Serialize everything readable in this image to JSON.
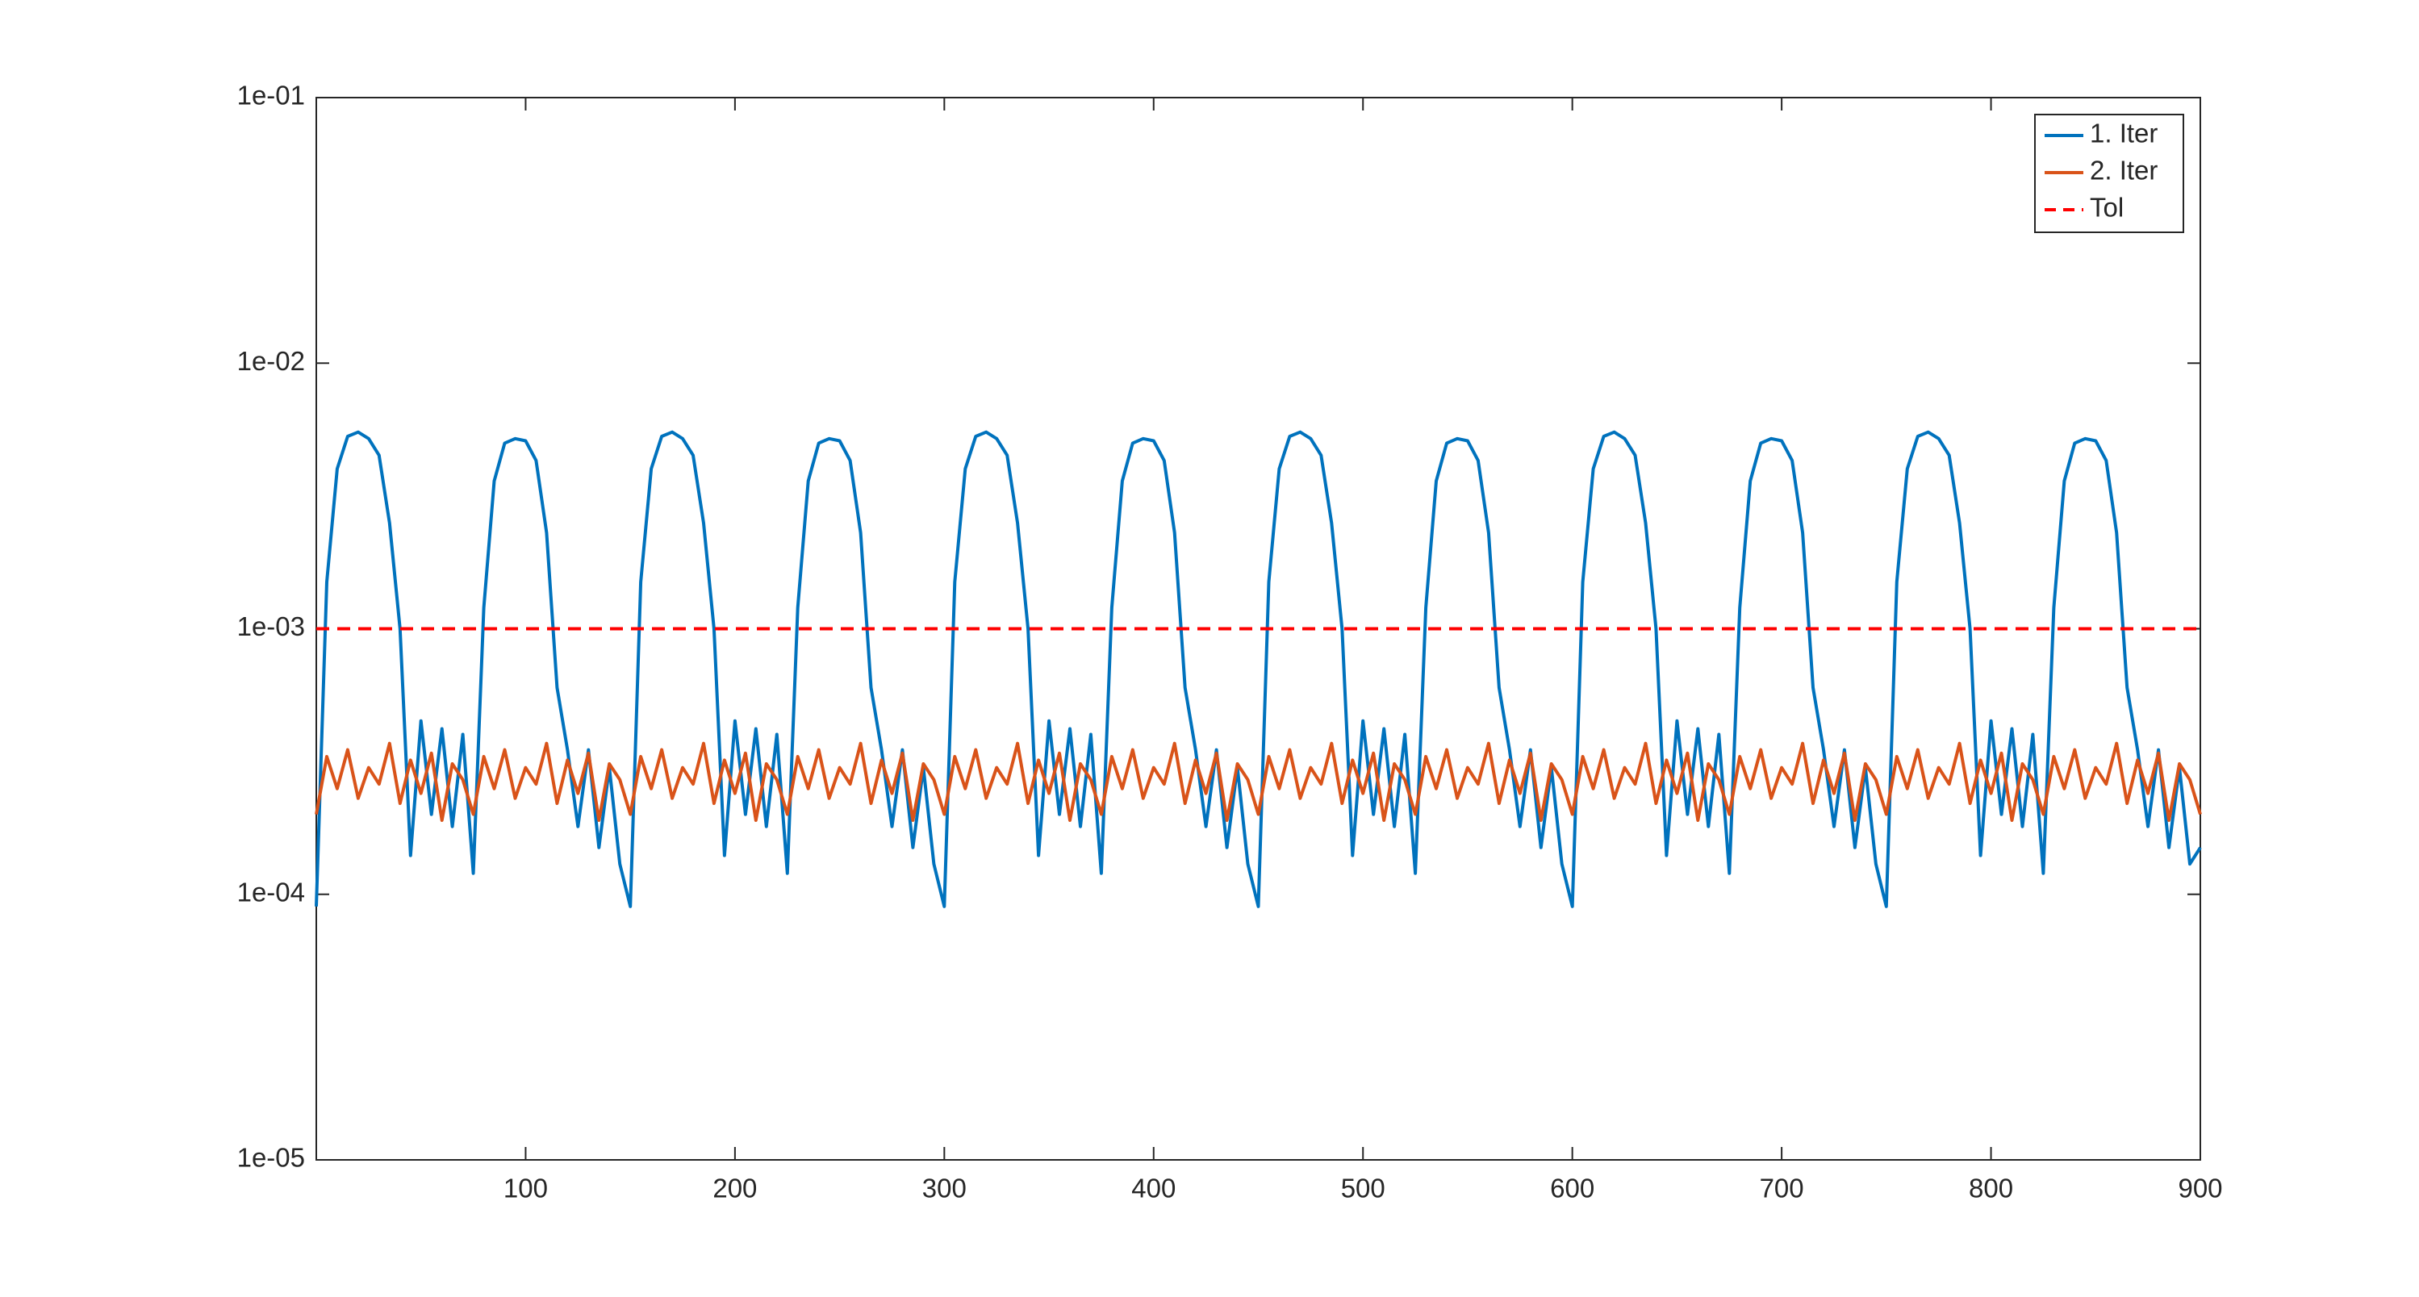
{
  "chart_data": {
    "type": "line",
    "log_y": true,
    "box": true,
    "legend": "upper right",
    "xlim": [
      0,
      900
    ],
    "xticks": [
      100,
      200,
      300,
      400,
      500,
      600,
      700,
      800,
      900
    ],
    "ylim": [
      1e-05,
      0.1
    ],
    "yticks": [
      {
        "value": 1e-05,
        "label": "1e-05"
      },
      {
        "value": 0.0001,
        "label": "1e-04"
      },
      {
        "value": 0.001,
        "label": "1e-03"
      },
      {
        "value": 0.01,
        "label": "1e-02"
      },
      {
        "value": 0.1,
        "label": "1e-01"
      }
    ],
    "x": [
      0,
      5,
      10,
      15,
      20,
      25,
      30,
      35,
      40,
      45,
      50,
      55,
      60,
      65,
      70,
      75,
      80,
      85,
      90,
      95,
      100,
      105,
      110,
      115,
      120,
      125,
      130,
      135,
      140,
      145,
      150,
      155,
      160,
      165,
      170,
      175,
      180,
      185,
      190,
      195,
      200,
      205,
      210,
      215,
      220,
      225,
      230,
      235,
      240,
      245,
      250,
      255,
      260,
      265,
      270,
      275,
      280,
      285,
      290,
      295,
      300,
      305,
      310,
      315,
      320,
      325,
      330,
      335,
      340,
      345,
      350,
      355,
      360,
      365,
      370,
      375,
      380,
      385,
      390,
      395,
      400,
      405,
      410,
      415,
      420,
      425,
      430,
      435,
      440,
      445,
      450,
      455,
      460,
      465,
      470,
      475,
      480,
      485,
      490,
      495,
      500,
      505,
      510,
      515,
      520,
      525,
      530,
      535,
      540,
      545,
      550,
      555,
      560,
      565,
      570,
      575,
      580,
      585,
      590,
      595,
      600,
      605,
      610,
      615,
      620,
      625,
      630,
      635,
      640,
      645,
      650,
      655,
      660,
      665,
      670,
      675,
      680,
      685,
      690,
      695,
      700,
      705,
      710,
      715,
      720,
      725,
      730,
      735,
      740,
      745,
      750,
      755,
      760,
      765,
      770,
      775,
      780,
      785,
      790,
      795,
      800,
      805,
      810,
      815,
      820,
      825,
      830,
      835,
      840,
      845,
      850,
      855,
      860,
      865,
      870,
      875,
      880,
      885,
      890,
      895,
      900
    ],
    "series": [
      {
        "name": "1. Iter",
        "color": "#0072bd",
        "values": [
          9e-05,
          0.0015,
          0.004,
          0.0053,
          0.0055,
          0.0052,
          0.0045,
          0.0025,
          0.001,
          0.00014,
          0.00045,
          0.0002,
          0.00042,
          0.00018,
          0.0004,
          0.00012,
          0.0012,
          0.0036,
          0.005,
          0.0052,
          0.0051,
          0.0043,
          0.0023,
          0.0006,
          0.00035,
          0.00018,
          0.00035,
          0.00015,
          0.0003,
          0.00013,
          9e-05,
          0.0015,
          0.004,
          0.0053,
          0.0055,
          0.0052,
          0.0045,
          0.0025,
          0.001,
          0.00014,
          0.00045,
          0.0002,
          0.00042,
          0.00018,
          0.0004,
          0.00012,
          0.0012,
          0.0036,
          0.005,
          0.0052,
          0.0051,
          0.0043,
          0.0023,
          0.0006,
          0.00035,
          0.00018,
          0.00035,
          0.00015,
          0.0003,
          0.00013,
          9e-05,
          0.0015,
          0.004,
          0.0053,
          0.0055,
          0.0052,
          0.0045,
          0.0025,
          0.001,
          0.00014,
          0.00045,
          0.0002,
          0.00042,
          0.00018,
          0.0004,
          0.00012,
          0.0012,
          0.0036,
          0.005,
          0.0052,
          0.0051,
          0.0043,
          0.0023,
          0.0006,
          0.00035,
          0.00018,
          0.00035,
          0.00015,
          0.0003,
          0.00013,
          9e-05,
          0.0015,
          0.004,
          0.0053,
          0.0055,
          0.0052,
          0.0045,
          0.0025,
          0.001,
          0.00014,
          0.00045,
          0.0002,
          0.00042,
          0.00018,
          0.0004,
          0.00012,
          0.0012,
          0.0036,
          0.005,
          0.0052,
          0.0051,
          0.0043,
          0.0023,
          0.0006,
          0.00035,
          0.00018,
          0.00035,
          0.00015,
          0.0003,
          0.00013,
          9e-05,
          0.0015,
          0.004,
          0.0053,
          0.0055,
          0.0052,
          0.0045,
          0.0025,
          0.001,
          0.00014,
          0.00045,
          0.0002,
          0.00042,
          0.00018,
          0.0004,
          0.00012,
          0.0012,
          0.0036,
          0.005,
          0.0052,
          0.0051,
          0.0043,
          0.0023,
          0.0006,
          0.00035,
          0.00018,
          0.00035,
          0.00015,
          0.0003,
          0.00013,
          9e-05,
          0.0015,
          0.004,
          0.0053,
          0.0055,
          0.0052,
          0.0045,
          0.0025,
          0.001,
          0.00014,
          0.00045,
          0.0002,
          0.00042,
          0.00018,
          0.0004,
          0.00012,
          0.0012,
          0.0036,
          0.005,
          0.0052,
          0.0051,
          0.0043,
          0.0023,
          0.0006,
          0.00035,
          0.00018,
          0.00035,
          0.00015,
          0.0003,
          0.00013,
          0.00015
        ]
      },
      {
        "name": "2. Iter",
        "color": "#d95319",
        "values": [
          0.0002,
          0.00033,
          0.00025,
          0.00035,
          0.00023,
          0.0003,
          0.00026,
          0.00037,
          0.00022,
          0.00032,
          0.00024,
          0.00034,
          0.00019,
          0.00031,
          0.00027,
          0.0002,
          0.00033,
          0.00025,
          0.00035,
          0.00023,
          0.0003,
          0.00026,
          0.00037,
          0.00022,
          0.00032,
          0.00024,
          0.00034,
          0.00019,
          0.00031,
          0.00027,
          0.0002,
          0.00033,
          0.00025,
          0.00035,
          0.00023,
          0.0003,
          0.00026,
          0.00037,
          0.00022,
          0.00032,
          0.00024,
          0.00034,
          0.00019,
          0.00031,
          0.00027,
          0.0002,
          0.00033,
          0.00025,
          0.00035,
          0.00023,
          0.0003,
          0.00026,
          0.00037,
          0.00022,
          0.00032,
          0.00024,
          0.00034,
          0.00019,
          0.00031,
          0.00027,
          0.0002,
          0.00033,
          0.00025,
          0.00035,
          0.00023,
          0.0003,
          0.00026,
          0.00037,
          0.00022,
          0.00032,
          0.00024,
          0.00034,
          0.00019,
          0.00031,
          0.00027,
          0.0002,
          0.00033,
          0.00025,
          0.00035,
          0.00023,
          0.0003,
          0.00026,
          0.00037,
          0.00022,
          0.00032,
          0.00024,
          0.00034,
          0.00019,
          0.00031,
          0.00027,
          0.0002,
          0.00033,
          0.00025,
          0.00035,
          0.00023,
          0.0003,
          0.00026,
          0.00037,
          0.00022,
          0.00032,
          0.00024,
          0.00034,
          0.00019,
          0.00031,
          0.00027,
          0.0002,
          0.00033,
          0.00025,
          0.00035,
          0.00023,
          0.0003,
          0.00026,
          0.00037,
          0.00022,
          0.00032,
          0.00024,
          0.00034,
          0.00019,
          0.00031,
          0.00027,
          0.0002,
          0.00033,
          0.00025,
          0.00035,
          0.00023,
          0.0003,
          0.00026,
          0.00037,
          0.00022,
          0.00032,
          0.00024,
          0.00034,
          0.00019,
          0.00031,
          0.00027,
          0.0002,
          0.00033,
          0.00025,
          0.00035,
          0.00023,
          0.0003,
          0.00026,
          0.00037,
          0.00022,
          0.00032,
          0.00024,
          0.00034,
          0.00019,
          0.00031,
          0.00027,
          0.0002,
          0.00033,
          0.00025,
          0.00035,
          0.00023,
          0.0003,
          0.00026,
          0.00037,
          0.00022,
          0.00032,
          0.00024,
          0.00034,
          0.00019,
          0.00031,
          0.00027,
          0.0002,
          0.00033,
          0.00025,
          0.00035,
          0.00023,
          0.0003,
          0.00026,
          0.00037,
          0.00022,
          0.00032,
          0.00024,
          0.00034,
          0.00019,
          0.00031,
          0.00027,
          0.0002
        ]
      },
      {
        "name": "Tol",
        "color": "#ff0000",
        "dash": true,
        "x": [
          0,
          900
        ],
        "values": [
          0.001,
          0.001
        ]
      }
    ]
  }
}
